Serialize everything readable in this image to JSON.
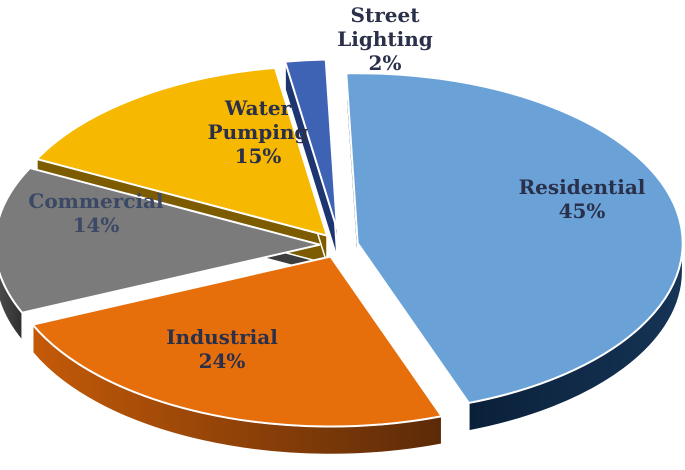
{
  "chart_data": {
    "type": "pie",
    "style": "3d-exploded",
    "title": "",
    "slices": [
      {
        "label": "Residential",
        "value": 45,
        "pct_text": "45%",
        "color": "#6aa2d8",
        "side_color": "#0f2a47",
        "label_color": "#2a2f4a"
      },
      {
        "label": "Industrial",
        "value": 24,
        "pct_text": "24%",
        "color": "#e66f0c",
        "side_color": "#8a3c06",
        "label_color": "#2a2f4a"
      },
      {
        "label": "Commercial",
        "value": 14,
        "pct_text": "14%",
        "color": "#7b7b7b",
        "side_color": "#3d3d3d",
        "label_color": "#3b4866"
      },
      {
        "label": "Water Pumping",
        "value": 15,
        "pct_text": "15%",
        "color": "#f6b800",
        "side_color": "#7d5c00",
        "label_color": "#2a2f4a"
      },
      {
        "label": "Street Lighting",
        "value": 2,
        "pct_text": "2%",
        "color": "#3e63b4",
        "side_color": "#1d3570",
        "label_color": "#2a2f4a"
      }
    ]
  }
}
